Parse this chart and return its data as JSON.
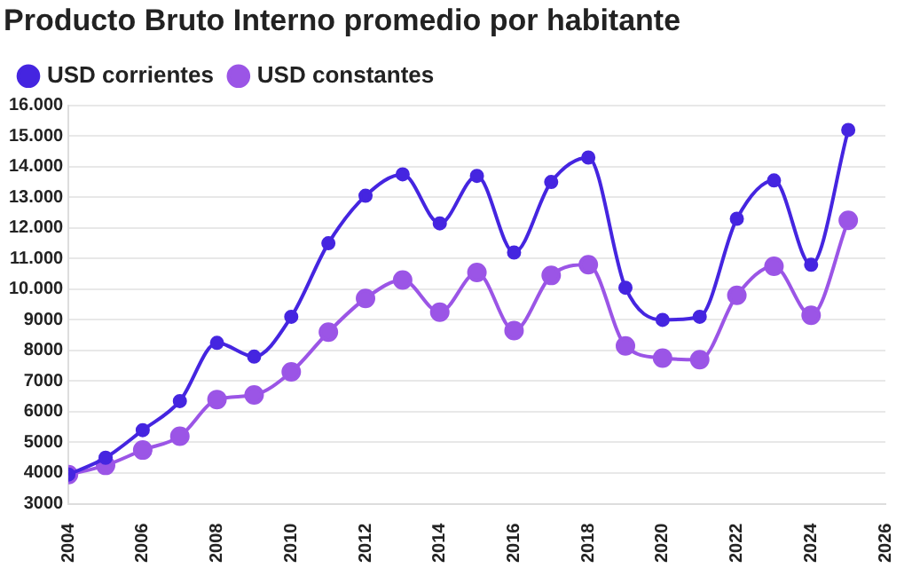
{
  "chart_data": {
    "type": "line",
    "title": "Producto Bruto Interno promedio por habitante",
    "x": [
      2004,
      2005,
      2006,
      2007,
      2008,
      2009,
      2010,
      2011,
      2012,
      2013,
      2014,
      2015,
      2016,
      2017,
      2018,
      2019,
      2020,
      2021,
      2022,
      2023,
      2024,
      2025
    ],
    "series": [
      {
        "name": "USD corrientes",
        "color": "#4525e0",
        "values": [
          3950,
          4500,
          5400,
          6350,
          8250,
          7800,
          9100,
          11500,
          13050,
          13750,
          12150,
          13700,
          11200,
          13500,
          14300,
          10050,
          9000,
          9100,
          12300,
          13550,
          10800,
          15200
        ]
      },
      {
        "name": "USD constantes",
        "color": "#9b55e6",
        "values": [
          3950,
          4250,
          4750,
          5200,
          6400,
          6550,
          7300,
          8600,
          9700,
          10300,
          9250,
          10550,
          8650,
          10450,
          10800,
          8150,
          7750,
          7700,
          9800,
          10750,
          9150,
          12250
        ]
      }
    ],
    "xlim": [
      2004,
      2026
    ],
    "xticks": [
      2004,
      2006,
      2008,
      2010,
      2012,
      2014,
      2016,
      2018,
      2020,
      2022,
      2024,
      2026
    ],
    "ylim": [
      3000,
      16000
    ],
    "yticks": [
      3000,
      4000,
      5000,
      6000,
      7000,
      8000,
      9000,
      {
        "value": 10000,
        "label": "10.000"
      },
      {
        "value": 11000,
        "label": "11.000"
      },
      {
        "value": 12000,
        "label": "12.000"
      },
      {
        "value": 13000,
        "label": "13.000"
      },
      {
        "value": 14000,
        "label": "14.000"
      },
      {
        "value": 15000,
        "label": "15.000"
      },
      {
        "value": 16000,
        "label": "16.000"
      }
    ],
    "grid": "y",
    "legend": "top left",
    "marker": "circle",
    "line_style": "solid"
  }
}
